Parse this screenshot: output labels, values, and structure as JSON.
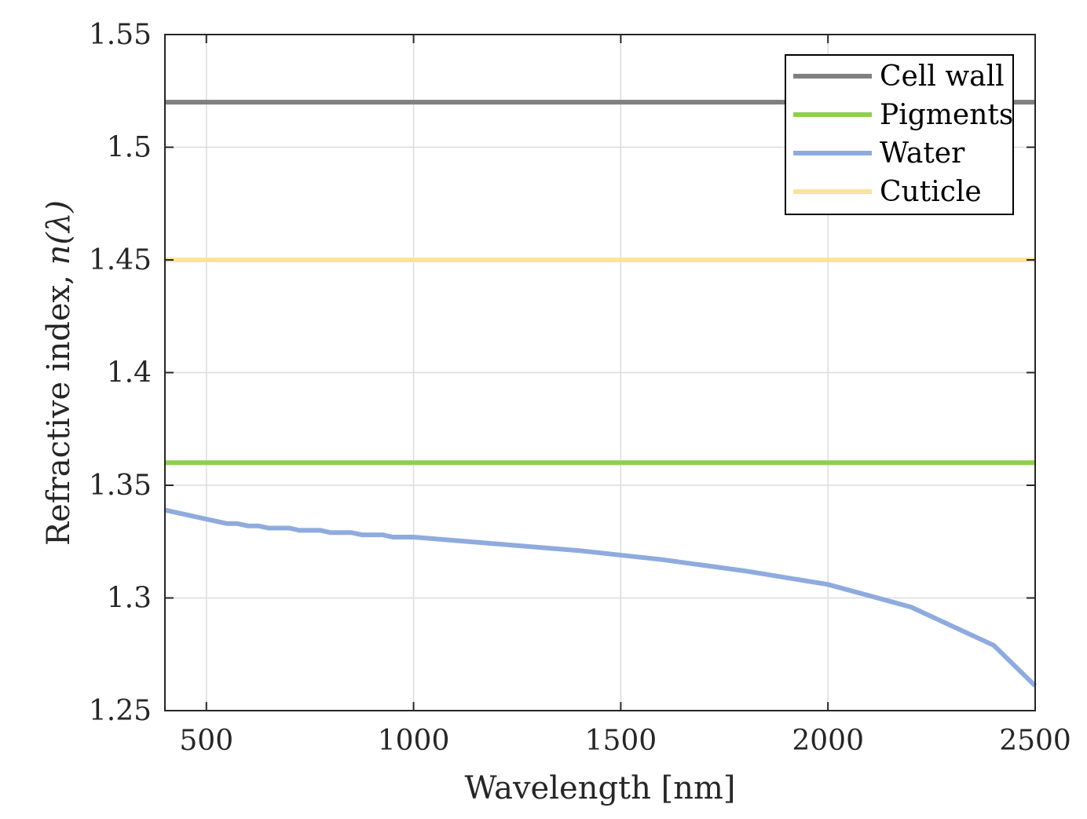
{
  "chart_data": {
    "type": "line",
    "title": "",
    "xlabel": "Wavelength [nm]",
    "ylabel_text": "Refractive index, ",
    "ylabel_math": "n(λ)",
    "xlim": [
      400,
      2500
    ],
    "ylim": [
      1.25,
      1.55
    ],
    "xticks": [
      500,
      1000,
      1500,
      2000,
      2500
    ],
    "xtick_labels": [
      "500",
      "1000",
      "1500",
      "2000",
      "2500"
    ],
    "yticks": [
      1.25,
      1.3,
      1.35,
      1.4,
      1.45,
      1.5,
      1.55
    ],
    "ytick_labels": [
      "1.25",
      "1.3",
      "1.35",
      "1.4",
      "1.45",
      "1.5",
      "1.55"
    ],
    "grid": true,
    "legend_position": "top-right",
    "series": [
      {
        "name": "Cell wall",
        "color": "#808080",
        "x": [
          400,
          2500
        ],
        "y": [
          1.52,
          1.52
        ]
      },
      {
        "name": "Pigments",
        "color": "#8dcf4f",
        "x": [
          400,
          2500
        ],
        "y": [
          1.36,
          1.36
        ]
      },
      {
        "name": "Water",
        "color": "#8fabde",
        "x": [
          400,
          450,
          500,
          550,
          575,
          600,
          625,
          650,
          675,
          700,
          725,
          750,
          775,
          800,
          825,
          850,
          875,
          900,
          925,
          950,
          975,
          1000,
          1200,
          1400,
          1600,
          1800,
          2000,
          2200,
          2400,
          2500
        ],
        "y": [
          1.339,
          1.337,
          1.335,
          1.333,
          1.333,
          1.332,
          1.332,
          1.331,
          1.331,
          1.331,
          1.33,
          1.33,
          1.33,
          1.329,
          1.329,
          1.329,
          1.328,
          1.328,
          1.328,
          1.327,
          1.327,
          1.327,
          1.324,
          1.321,
          1.317,
          1.312,
          1.306,
          1.296,
          1.279,
          1.261
        ]
      },
      {
        "name": "Cuticle",
        "color": "#fde39a",
        "x": [
          400,
          2500
        ],
        "y": [
          1.45,
          1.45
        ]
      }
    ]
  }
}
